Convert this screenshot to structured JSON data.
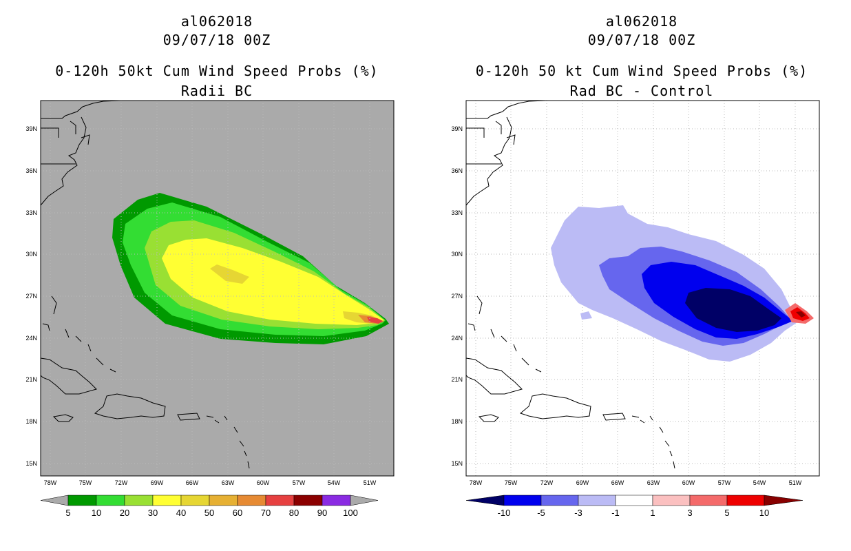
{
  "left_panel": {
    "title_lines": [
      "al062018",
      "09/07/18 00Z",
      "0-120h 50kt Cum Wind Speed Probs (%)",
      "Radii BC"
    ],
    "background_color": "#aaaaaa",
    "colorbar": {
      "labels": [
        "5",
        "10",
        "20",
        "30",
        "40",
        "50",
        "60",
        "70",
        "80",
        "90",
        "100"
      ],
      "colors": [
        "#009900",
        "#33dd33",
        "#99e033",
        "#ffff33",
        "#e6d633",
        "#e6b033",
        "#e68a33",
        "#e64040",
        "#8b0000",
        "#8a2be2"
      ],
      "end_color": "#aaaaaa"
    }
  },
  "right_panel": {
    "title_lines": [
      "al062018",
      "09/07/18 00Z",
      "0-120h 50 kt Cum Wind Speed Probs (%)",
      "Rad BC - Control"
    ],
    "background_color": "#ffffff",
    "colorbar": {
      "labels": [
        "-10",
        "-5",
        "-3",
        "-1",
        "1",
        "3",
        "5",
        "10"
      ],
      "colors": [
        "#0000ee",
        "#6666ee",
        "#bbbbf5",
        "#ffffff",
        "#fbc0c0",
        "#f46a6a",
        "#ee0000"
      ],
      "low_color": "#000066",
      "high_color": "#880000"
    }
  },
  "axes": {
    "lat_labels": [
      "39N",
      "36N",
      "33N",
      "30N",
      "27N",
      "24N",
      "21N",
      "18N",
      "15N"
    ],
    "lon_labels": [
      "78W",
      "75W",
      "72W",
      "69W",
      "66W",
      "63W",
      "60W",
      "57W",
      "54W",
      "51W"
    ]
  }
}
